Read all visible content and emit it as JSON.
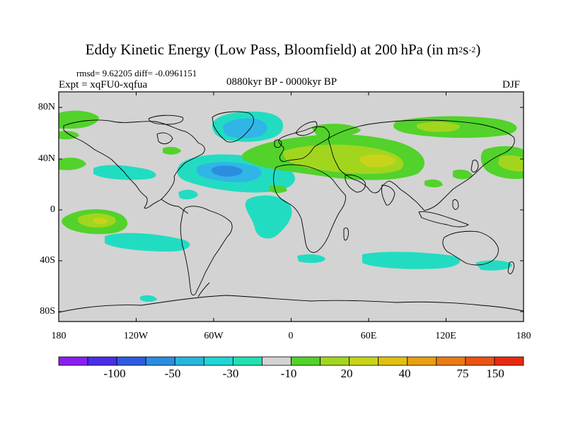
{
  "title": {
    "main": "Eddy Kinetic Energy (Low Pass, Bloomfield) at 200 hPa (in m",
    "sup1": "2",
    "mid": "s",
    "sup2": "-2",
    "close": ")"
  },
  "stats": "rmsd= 9.62205 diff= -0.0961151",
  "expt": "Expt = xqFU0-xqfua",
  "period": "0880kyr BP - 0000kyr BP",
  "season": "DJF",
  "lat_labels": [
    "80N",
    "40N",
    "0",
    "40S",
    "80S"
  ],
  "lon_labels": [
    "180",
    "120W",
    "60W",
    "0",
    "60E",
    "120E",
    "180"
  ],
  "colorbar": {
    "labels": [
      "-100",
      "-50",
      "-30",
      "-10",
      "20",
      "40",
      "75",
      "150"
    ],
    "colors": [
      "#8a1ef0",
      "#4a2ee8",
      "#2f5ae0",
      "#2a8ee0",
      "#26b6e0",
      "#20d6d6",
      "#22e0b0",
      "#d3d3d3",
      "#52d22a",
      "#a2d61e",
      "#c8d41a",
      "#e0c010",
      "#e8a010",
      "#ea7a14",
      "#ec5214",
      "#e82a10"
    ]
  },
  "colors": {
    "background": "#d3d3d3",
    "cyan": "#22dcc2",
    "sky": "#30b6e6",
    "blue": "#2a8ee0",
    "green": "#52d22a",
    "yellowgreen": "#a2d61e",
    "olive": "#c8d41a"
  }
}
